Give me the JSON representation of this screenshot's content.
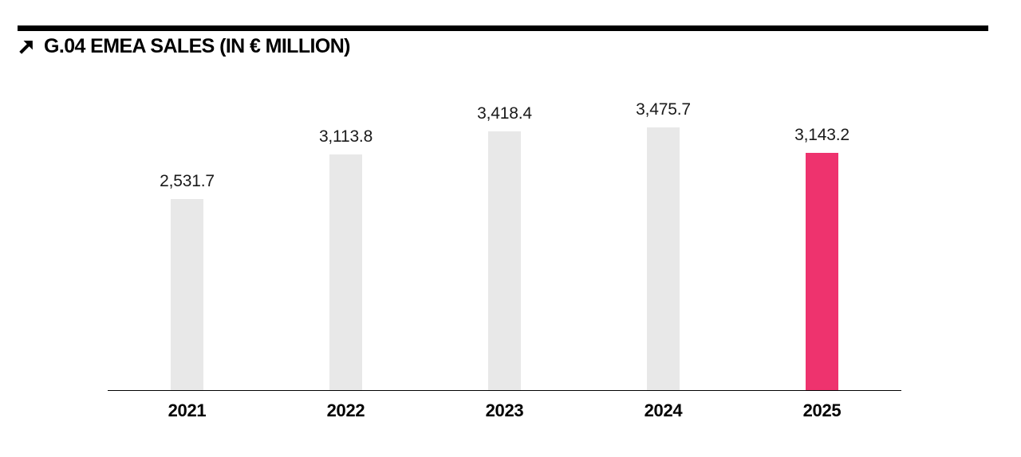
{
  "header": {
    "icon": "arrow-up-right",
    "title": "G.04 EMEA SALES (IN € MILLION)"
  },
  "chart_data": {
    "type": "bar",
    "title": "G.04 EMEA SALES (IN € MILLION)",
    "categories": [
      "2021",
      "2022",
      "2023",
      "2024",
      "2025"
    ],
    "values": [
      2531.7,
      3113.8,
      3418.4,
      3475.7,
      3143.2
    ],
    "value_labels": [
      "2,531.7",
      "3,113.8",
      "3,418.4",
      "3,475.7",
      "3,143.2"
    ],
    "xlabel": "",
    "ylabel": "",
    "ylim": [
      0,
      3500
    ],
    "grid": false,
    "legend": "none",
    "bar_color_default": "#e8e8e8",
    "bar_color_highlight": "#ee336e",
    "highlight_index": 4,
    "axis_color": "#000000",
    "text_color": "#1a1a1a"
  }
}
